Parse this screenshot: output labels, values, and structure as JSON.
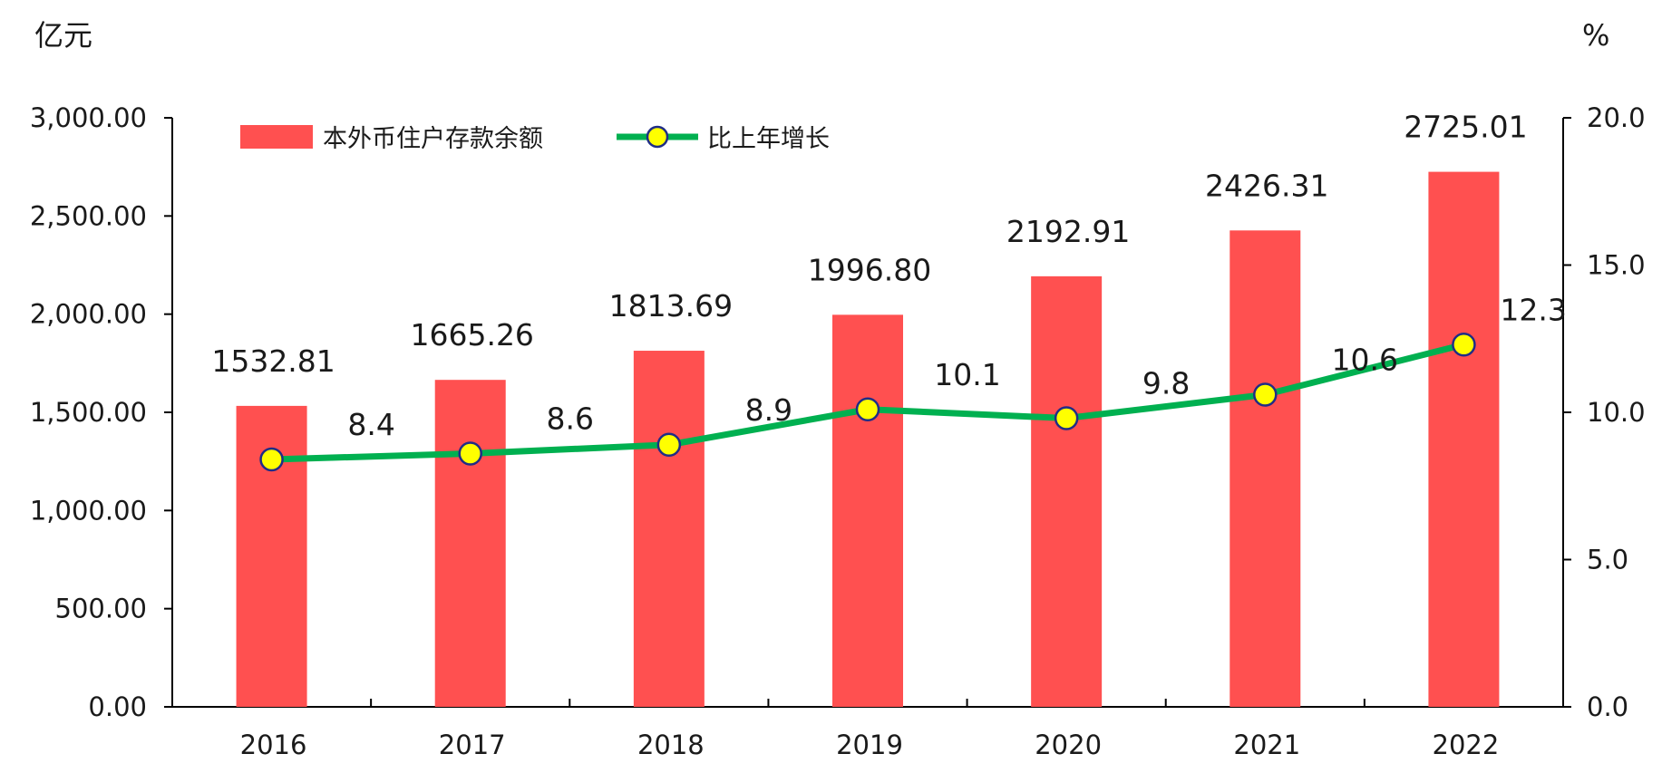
{
  "chart_data": {
    "type": "bar",
    "title": "",
    "xlabel": "",
    "left_unit": "亿元",
    "right_unit": "%",
    "categories": [
      "2016",
      "2017",
      "2018",
      "2019",
      "2020",
      "2021",
      "2022"
    ],
    "series": [
      {
        "name": "本外币住户存款余额",
        "type": "bar",
        "axis": "left",
        "color": "#ff5050",
        "values": [
          1532.81,
          1665.26,
          1813.69,
          1996.8,
          2192.91,
          2426.31,
          2725.01
        ],
        "labels": [
          "1532.81",
          "1665.26",
          "1813.69",
          "1996.80",
          "2192.91",
          "2426.31",
          "2725.01"
        ]
      },
      {
        "name": "比上年增长",
        "type": "line",
        "axis": "right",
        "color": "#00b050",
        "marker_color": "#ffff00",
        "values": [
          8.4,
          8.6,
          8.9,
          10.1,
          9.8,
          10.6,
          12.3
        ],
        "labels": [
          "8.4",
          "8.6",
          "8.9",
          "10.1",
          "9.8",
          "10.6",
          "12.3"
        ]
      }
    ],
    "left_axis": {
      "range": [
        0,
        3000
      ],
      "ticks": [
        0,
        500,
        1000,
        1500,
        2000,
        2500,
        3000
      ],
      "tick_labels": [
        "0.00",
        "500.00",
        "1,000.00",
        "1,500.00",
        "2,000.00",
        "2,500.00",
        "3,000.00"
      ]
    },
    "right_axis": {
      "range": [
        0,
        20
      ],
      "ticks": [
        0,
        5,
        10,
        15,
        20
      ],
      "tick_labels": [
        "0.0",
        "5.0",
        "10.0",
        "15.0",
        "20.0"
      ]
    },
    "grid": false,
    "legend": "top-left"
  }
}
